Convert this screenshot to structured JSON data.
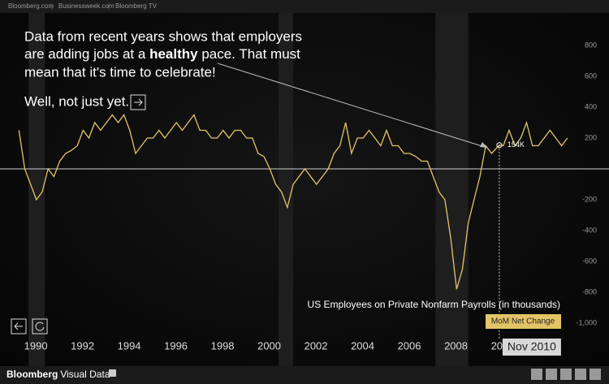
{
  "nav": {
    "links": [
      "Bloomberg.com",
      "Businessweek.com",
      "Bloomberg TV"
    ]
  },
  "intro": {
    "line1": "Data from recent years shows that employers",
    "line2a": "are adding jobs at a ",
    "line2b": "healthy",
    "line2c": " pace. That must",
    "line3": "mean that it's time to celebrate!",
    "line4": "Well, not just yet."
  },
  "footer": {
    "brand": "Bloomberg",
    "product": "Visual Data"
  },
  "chart_data": {
    "type": "line",
    "subtitle": "US Employees on Private Nonfarm Payrolls (in thousands)",
    "x": [
      1990.25,
      1990.5,
      1990.75,
      1991,
      1991.25,
      1991.5,
      1991.75,
      1992,
      1992.25,
      1992.5,
      1992.75,
      1993,
      1993.25,
      1993.5,
      1993.75,
      1994,
      1994.25,
      1994.5,
      1994.75,
      1995,
      1995.25,
      1995.5,
      1995.75,
      1996,
      1996.25,
      1996.5,
      1996.75,
      1997,
      1997.25,
      1997.5,
      1997.75,
      1998,
      1998.25,
      1998.5,
      1998.75,
      1999,
      1999.25,
      1999.5,
      1999.75,
      2000,
      2000.25,
      2000.5,
      2000.75,
      2001,
      2001.25,
      2001.5,
      2001.75,
      2002,
      2002.25,
      2002.5,
      2002.75,
      2003,
      2003.25,
      2003.5,
      2003.75,
      2004,
      2004.25,
      2004.5,
      2004.75,
      2005,
      2005.25,
      2005.5,
      2005.75,
      2006,
      2006.25,
      2006.5,
      2006.75,
      2007,
      2007.25,
      2007.5,
      2007.75,
      2008,
      2008.25,
      2008.5,
      2008.75,
      2009,
      2009.25,
      2009.5,
      2009.75,
      2010,
      2010.25,
      2010.5,
      2010.83,
      2011,
      2011.25,
      2011.5,
      2011.75,
      2012,
      2012.25,
      2012.5,
      2012.75,
      2013,
      2013.25,
      2013.5,
      2013.75
    ],
    "series": [
      {
        "name": "MoM Net Change",
        "color": "#e3c567",
        "values": [
          250,
          0,
          -100,
          -200,
          -150,
          0,
          -50,
          50,
          100,
          120,
          150,
          250,
          200,
          300,
          250,
          300,
          350,
          300,
          350,
          250,
          100,
          150,
          200,
          200,
          250,
          200,
          250,
          300,
          250,
          300,
          350,
          250,
          250,
          200,
          200,
          250,
          200,
          250,
          250,
          200,
          200,
          100,
          80,
          0,
          -100,
          -150,
          -250,
          -100,
          -50,
          0,
          -50,
          -100,
          -50,
          0,
          100,
          150,
          300,
          100,
          200,
          200,
          250,
          200,
          150,
          250,
          150,
          150,
          100,
          100,
          80,
          50,
          50,
          -50,
          -150,
          -200,
          -450,
          -780,
          -650,
          -350,
          -200,
          -50,
          150,
          100,
          154,
          150,
          250,
          150,
          200,
          300,
          150,
          150,
          200,
          250,
          200,
          150,
          200
        ]
      }
    ],
    "highlight": {
      "label": "Nov 2010",
      "x": 2010.83,
      "value": 154,
      "value_label": "154K"
    },
    "recessions": [
      [
        1990.66,
        1991.36
      ],
      [
        2001.37,
        2002.0
      ],
      [
        2008.1,
        2009.5
      ]
    ],
    "xlim": [
      1989.44,
      2015.53
    ],
    "xticks": [
      1990,
      1992,
      1994,
      1996,
      1998,
      2000,
      2002,
      2004,
      2006,
      2008,
      2010
    ],
    "ylim": [
      -1000,
      800
    ],
    "yticks": [
      800,
      600,
      400,
      200,
      -200,
      -400,
      -600,
      -800,
      {
        "value": -1000,
        "label": "-1,000"
      }
    ]
  }
}
